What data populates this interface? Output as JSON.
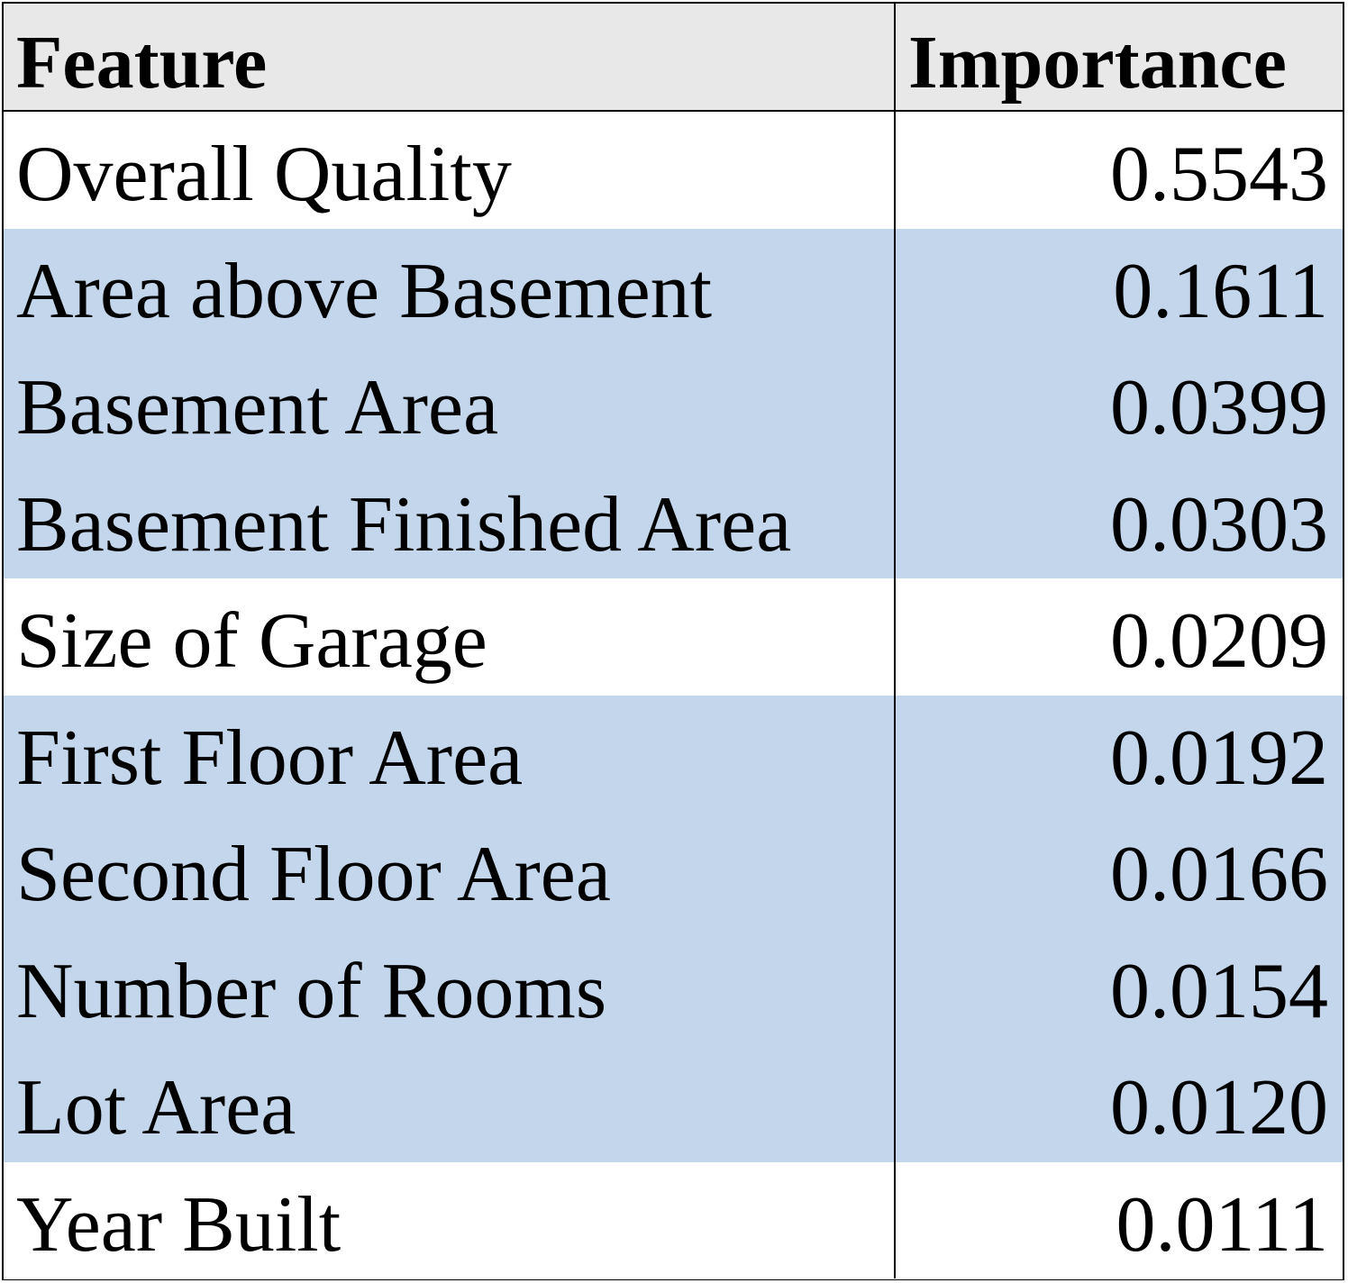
{
  "chart_data": {
    "type": "table",
    "columns": [
      "Feature",
      "Importance"
    ],
    "highlight_color": "#c3d6ec",
    "header_color": "#e8e8e8",
    "rows": [
      {
        "feature": "Overall Quality",
        "importance": "0.5543",
        "highlighted": false
      },
      {
        "feature": "Area above Basement",
        "importance": "0.1611",
        "highlighted": true
      },
      {
        "feature": "Basement Area",
        "importance": "0.0399",
        "highlighted": true
      },
      {
        "feature": "Basement Finished Area",
        "importance": "0.0303",
        "highlighted": true
      },
      {
        "feature": "Size of Garage",
        "importance": "0.0209",
        "highlighted": false
      },
      {
        "feature": "First Floor Area",
        "importance": "0.0192",
        "highlighted": true
      },
      {
        "feature": "Second Floor Area",
        "importance": "0.0166",
        "highlighted": true
      },
      {
        "feature": "Number of Rooms",
        "importance": "0.0154",
        "highlighted": true
      },
      {
        "feature": "Lot Area",
        "importance": "0.0120",
        "highlighted": true
      },
      {
        "feature": "Year Built",
        "importance": "0.0111",
        "highlighted": false
      }
    ]
  }
}
